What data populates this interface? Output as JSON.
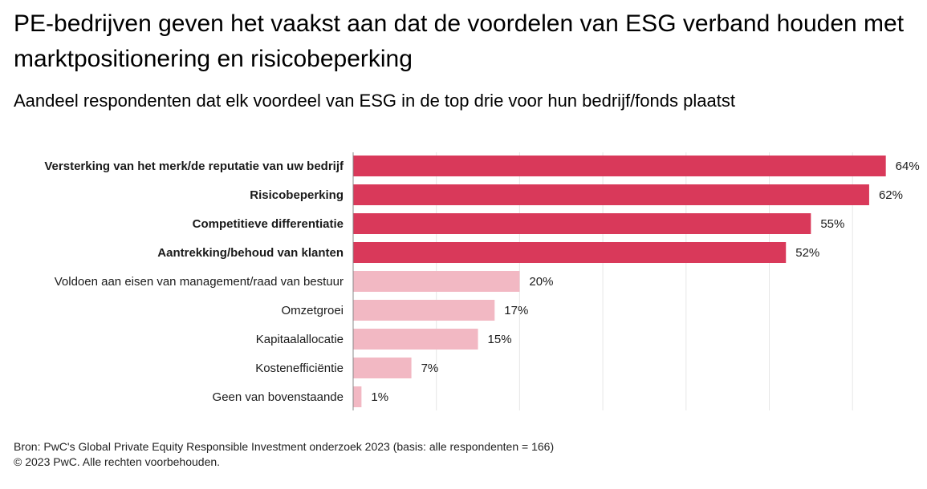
{
  "chart_data": {
    "type": "bar",
    "orientation": "horizontal",
    "title": "PE-bedrijven geven het vaakst aan dat de voordelen van ESG verband houden met marktpositionering en risicobeperking",
    "subtitle": "Aandeel respondenten dat elk voordeel van ESG in de top drie voor hun bedrijf/fonds plaatst",
    "categories": [
      "Versterking van het merk/de reputatie van uw bedrijf",
      "Risicobeperking",
      "Competitieve differentiatie",
      "Aantrekking/behoud van klanten",
      "Voldoen aan eisen van management/raad van bestuur",
      "Omzetgroei",
      "Kapitaalallocatie",
      "Kostenefficiëntie",
      "Geen van bovenstaande"
    ],
    "values": [
      64,
      62,
      55,
      52,
      20,
      17,
      15,
      7,
      1
    ],
    "value_labels": [
      "64%",
      "62%",
      "55%",
      "52%",
      "20%",
      "17%",
      "15%",
      "7%",
      "1%"
    ],
    "highlighted": [
      true,
      true,
      true,
      true,
      false,
      false,
      false,
      false,
      false
    ],
    "xlim": [
      0,
      70
    ],
    "grid": true,
    "colors": {
      "highlight": "#d9395a",
      "normal": "#f2b8c3",
      "grid": "#e6e6e6",
      "axis": "#888888"
    }
  },
  "footer": {
    "source": "Bron: PwC's Global Private Equity Responsible Investment onderzoek 2023 (basis: alle respondenten = 166)",
    "copyright": "© 2023 PwC. Alle rechten voorbehouden."
  }
}
